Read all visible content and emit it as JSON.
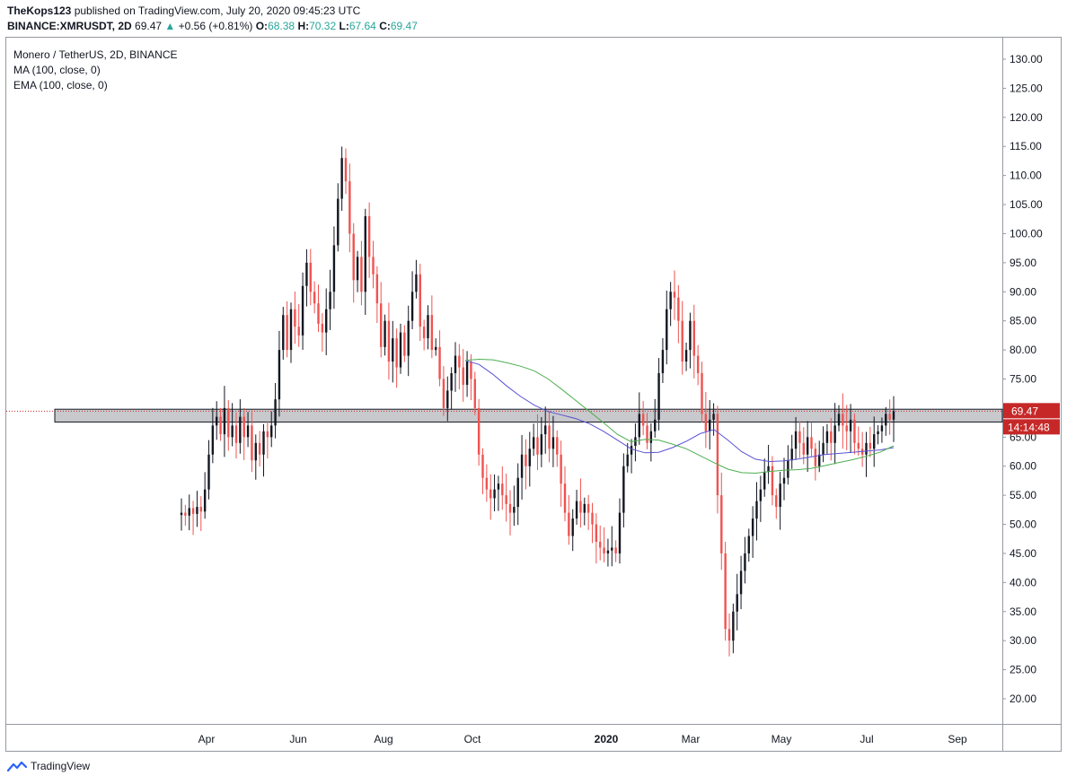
{
  "header": {
    "line1": {
      "author": "TheKops123",
      "rest": " published on TradingView.com, July 20, 2020 09:45:23 UTC"
    },
    "line2": {
      "symbol": "BINANCE:XMRUSDT, 2D",
      "last": "69.47",
      "arrow": "▲",
      "change": "+0.56 (+0.81%)",
      "o_label": "O:",
      "o_val": "68.38",
      "h_label": "H:",
      "h_val": "70.32",
      "l_label": "L:",
      "l_val": "67.64",
      "c_label": "C:",
      "c_val": "69.47"
    }
  },
  "legend": {
    "title": "Monero / TetherUS, 2D, BINANCE",
    "ma": "MA (100, close, 0)",
    "ema": "EMA (100, close, 0)"
  },
  "footer": {
    "brand": "TradingView"
  },
  "chart_data": {
    "type": "candlestick",
    "yaxis": {
      "ticks": [
        130,
        125,
        120,
        115,
        110,
        105,
        100,
        95,
        90,
        85,
        80,
        75,
        70,
        65,
        60,
        55,
        50,
        45,
        40,
        35,
        30,
        25,
        20
      ],
      "range": [
        16,
        137
      ],
      "position": "right"
    },
    "xaxis": {
      "labels": [
        "Apr",
        "Jun",
        "Aug",
        "Oct",
        "2020",
        "Mar",
        "May",
        "Jul",
        "Sep"
      ],
      "bold": [
        "2020"
      ]
    },
    "last_price": {
      "value": 69.47,
      "label": "69.47",
      "countdown": "14:14:48"
    },
    "support_zone": {
      "low": 67.6,
      "high": 69.8
    },
    "colors": {
      "up": "#131722",
      "down": "#ef5350",
      "ma": "#5b52d6",
      "ema": "#4caf50",
      "zone_fill": "#c8c9cc",
      "price_tag": "#c62828"
    },
    "closes": [
      52.0,
      51.5,
      52.8,
      51.8,
      53.0,
      52.2,
      56.0,
      62.0,
      67.0,
      68.5,
      65.5,
      70.0,
      65.0,
      67.0,
      64.0,
      68.5,
      65.0,
      67.0,
      61.0,
      64.0,
      62.0,
      66.0,
      65.0,
      67.0,
      71.5,
      80.0,
      86.0,
      80.0,
      87.0,
      84.0,
      82.5,
      91.0,
      95.0,
      90.0,
      88.0,
      84.5,
      83.0,
      87.0,
      90.0,
      98.0,
      106.0,
      113.0,
      109.0,
      100.0,
      92.0,
      96.0,
      90.0,
      103.0,
      96.0,
      93.0,
      88.0,
      80.5,
      85.0,
      78.0,
      82.0,
      77.0,
      83.0,
      79.0,
      85.0,
      90.0,
      93.0,
      84.0,
      82.0,
      86.0,
      80.0,
      80.5,
      75.0,
      70.0,
      73.0,
      76.0,
      79.0,
      77.0,
      74.0,
      78.0,
      75.0,
      70.0,
      62.0,
      58.0,
      56.0,
      54.5,
      56.0,
      57.0,
      55.0,
      53.5,
      52.0,
      53.0,
      58.0,
      62.0,
      60.0,
      63.0,
      65.0,
      62.0,
      65.5,
      67.0,
      63.0,
      65.0,
      62.0,
      57.0,
      52.0,
      48.0,
      51.0,
      54.0,
      52.0,
      53.5,
      52.0,
      50.0,
      47.0,
      46.0,
      45.0,
      45.5,
      46.0,
      45.0,
      52.0,
      60.0,
      62.0,
      63.5,
      65.0,
      69.0,
      67.0,
      64.0,
      66.0,
      68.0,
      76.0,
      80.0,
      87.0,
      90.0,
      89.0,
      85.0,
      78.0,
      80.0,
      85.0,
      79.0,
      76.0,
      69.0,
      66.0,
      68.0,
      69.0,
      55.0,
      45.0,
      32.0,
      30.0,
      35.0,
      38.0,
      42.0,
      45.0,
      48.0,
      51.0,
      54.0,
      56.0,
      59.0,
      60.0,
      55.0,
      53.0,
      57.0,
      58.0,
      61.0,
      63.0,
      66.0,
      64.0,
      62.0,
      65.0,
      63.0,
      60.0,
      62.0,
      64.0,
      66.0,
      64.0,
      67.0,
      69.0,
      67.0,
      66.0,
      68.0,
      64.0,
      63.0,
      62.0,
      64.0,
      63.0,
      65.5,
      66.0,
      67.0,
      69.0,
      68.0,
      69.47
    ],
    "ma_100": [
      78.2,
      77.5,
      75.8,
      73.8,
      72.0,
      70.5,
      69.4,
      68.8,
      68.2,
      67.3,
      66.0,
      64.5,
      63.0,
      62.3,
      62.4,
      63.2,
      64.3,
      65.6,
      66.3,
      64.5,
      62.5,
      61.2,
      60.8,
      60.9,
      61.2,
      61.6,
      62.0,
      62.2,
      62.4,
      62.6,
      62.8,
      63.2
    ],
    "ema_100": [
      78.2,
      78.4,
      78.3,
      77.8,
      77.2,
      76.4,
      75.0,
      73.2,
      71.3,
      69.4,
      67.5,
      65.5,
      64.2,
      64.6,
      64.5,
      63.8,
      63.0,
      61.8,
      60.6,
      59.5,
      58.9,
      58.8,
      59.1,
      59.3,
      59.4,
      59.6,
      60.1,
      60.6,
      61.1,
      61.7,
      62.4,
      63.5
    ]
  }
}
